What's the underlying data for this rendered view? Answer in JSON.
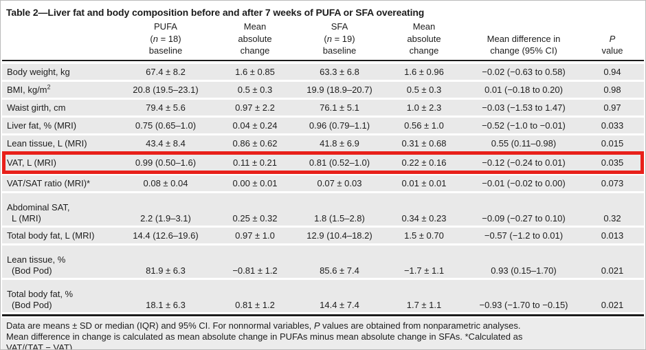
{
  "title": "Table 2—Liver fat and body composition before and after 7 weeks of PUFA or SFA overeating",
  "header": {
    "col_pufa": {
      "line1": "PUFA",
      "paren_open": "(",
      "n_symbol": "n",
      "n_rest": " = 18)",
      "line3": "baseline"
    },
    "col_pufa_change": {
      "line1": "Mean",
      "line2": "absolute",
      "line3": "change"
    },
    "col_sfa": {
      "line1": "SFA",
      "paren_open": "(",
      "n_symbol": "n",
      "n_rest": " = 19)",
      "line3": "baseline"
    },
    "col_sfa_change": {
      "line1": "Mean",
      "line2": "absolute",
      "line3": "change"
    },
    "col_diff": {
      "line1": "Mean difference in",
      "line2": "change (95% CI)"
    },
    "col_p": {
      "p_symbol": "P",
      "line2": "value"
    }
  },
  "table": {
    "rows": [
      {
        "label": "Body weight, kg",
        "values": [
          "67.4 ± 8.2",
          "1.6 ± 0.85",
          "63.3 ± 6.8",
          "1.6 ± 0.96",
          "−0.02 (−0.63 to 0.58)",
          "0.94"
        ],
        "two_line": false,
        "highlighted": false
      },
      {
        "label": "BMI, kg/m",
        "label_sup": "2",
        "values": [
          "20.8 (19.5–23.1)",
          "0.5 ± 0.3",
          "19.9 (18.9–20.7)",
          "0.5 ± 0.3",
          "0.01 (−0.18 to 0.20)",
          "0.98"
        ],
        "two_line": false,
        "highlighted": false
      },
      {
        "label": "Waist girth, cm",
        "values": [
          "79.4 ± 5.6",
          "0.97 ± 2.2",
          "76.1 ± 5.1",
          "1.0 ± 2.3",
          "−0.03 (−1.53 to 1.47)",
          "0.97"
        ],
        "two_line": false,
        "highlighted": false
      },
      {
        "label": "Liver fat, % (MRI)",
        "values": [
          "0.75 (0.65–1.0)",
          "0.04 ± 0.24",
          "0.96 (0.79–1.1)",
          "0.56 ± 1.0",
          "−0.52 (−1.0 to −0.01)",
          "0.033"
        ],
        "two_line": false,
        "highlighted": false
      },
      {
        "label": "Lean tissue, L (MRI)",
        "values": [
          "43.4 ± 8.4",
          "0.86 ± 0.62",
          "41.8 ± 6.9",
          "0.31 ± 0.68",
          "0.55 (0.11–0.98)",
          "0.015"
        ],
        "two_line": false,
        "highlighted": false
      },
      {
        "label": "VAT, L (MRI)",
        "values": [
          "0.99 (0.50–1.6)",
          "0.11 ± 0.21",
          "0.81 (0.52–1.0)",
          "0.22 ± 0.16",
          "−0.12 (−0.24 to 0.01)",
          "0.035"
        ],
        "two_line": false,
        "highlighted": true
      },
      {
        "label": "VAT/SAT ratio (MRI)*",
        "values": [
          "0.08 ± 0.04",
          "0.00 ± 0.01",
          "0.07 ± 0.03",
          "0.01 ± 0.01",
          "−0.01 (−0.02 to 0.00)",
          "0.073"
        ],
        "two_line": false,
        "highlighted": false
      },
      {
        "label": "Abdominal SAT,",
        "label2": " L (MRI)",
        "values": [
          "2.2 (1.9–3.1)",
          "0.25 ± 0.32",
          "1.8 (1.5–2.8)",
          "0.34 ± 0.23",
          "−0.09 (−0.27 to 0.10)",
          "0.32"
        ],
        "two_line": true,
        "highlighted": false
      },
      {
        "label": "Total body fat, L (MRI)",
        "values": [
          "14.4 (12.6–19.6)",
          "0.97 ± 1.0",
          "12.9 (10.4–18.2)",
          "1.5 ± 0.70",
          "−0.57 (−1.2 to 0.01)",
          "0.013"
        ],
        "two_line": false,
        "highlighted": false
      },
      {
        "label": "Lean tissue, %",
        "label2": " (Bod Pod)",
        "values": [
          "81.9 ± 6.3",
          "−0.81 ± 1.2",
          "85.6 ± 7.4",
          "−1.7 ± 1.1",
          "0.93 (0.15–1.70)",
          "0.021"
        ],
        "two_line": true,
        "highlighted": false
      },
      {
        "label": "Total body fat, %",
        "label2": " (Bod Pod)",
        "values": [
          "18.1 ± 6.3",
          "0.81 ± 1.2",
          "14.4 ± 7.4",
          "1.7 ± 1.1",
          "−0.93 (−1.70 to −0.15)",
          "0.021"
        ],
        "two_line": true,
        "highlighted": false
      }
    ]
  },
  "footnote": {
    "line1_pre": "Data are means ± SD or median (IQR) and 95% CI. For nonnormal variables, ",
    "line1_p": "P",
    "line1_post": " values are obtained from nonparametric analyses.",
    "line2": "Mean difference in change is calculated as mean absolute change in PUFAs minus mean absolute change in SFAs. *Calculated as",
    "line3": "VAT/(TAT − VAT)."
  },
  "colors": {
    "highlight_red": "#e8201a",
    "row_gray": "#e9e9e9",
    "footnote_bg": "#ececec",
    "rule_black": "#1b1b1b"
  }
}
